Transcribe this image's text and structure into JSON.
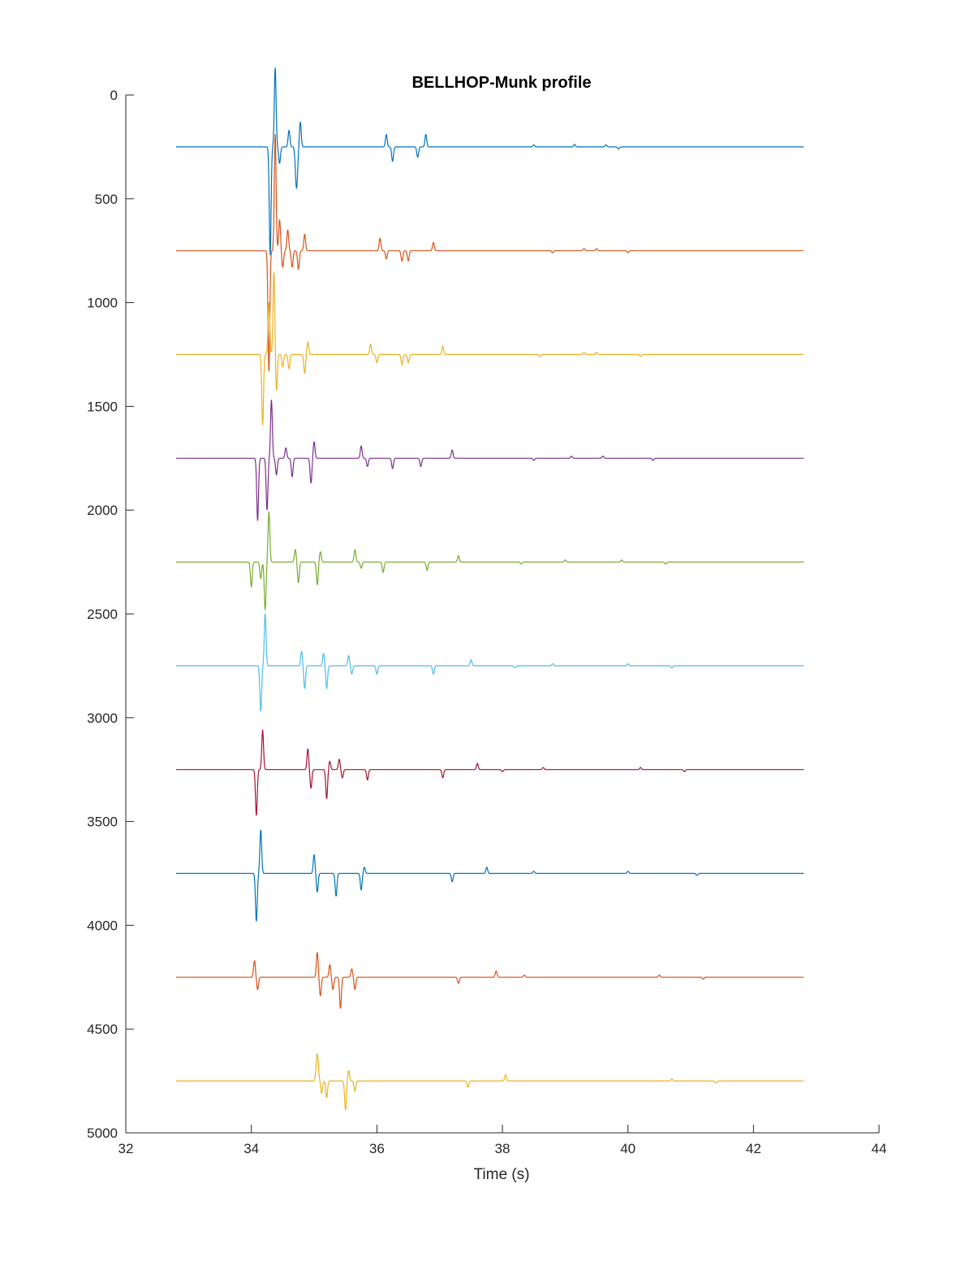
{
  "chart_data": {
    "type": "line",
    "title": "BELLHOP-Munk profile",
    "xlabel": "Time (s)",
    "ylabel": "",
    "xlim": [
      32,
      44
    ],
    "ylim": [
      0,
      5000
    ],
    "y_reversed": true,
    "grid": false,
    "legend": "none",
    "x_ticks": [
      32,
      34,
      36,
      38,
      40,
      42,
      44
    ],
    "y_ticks": [
      0,
      500,
      1000,
      1500,
      2000,
      2500,
      3000,
      3500,
      4000,
      4500,
      5000
    ],
    "x_range": [
      32.8,
      42.8
    ],
    "series": [
      {
        "baseline": 250,
        "color": "#0072BD",
        "events": [
          [
            34.3,
            -520,
            0.02
          ],
          [
            34.38,
            380,
            0.02
          ],
          [
            34.45,
            -80,
            0.02
          ],
          [
            34.6,
            80,
            0.02
          ],
          [
            34.72,
            -200,
            0.025
          ],
          [
            34.78,
            120,
            0.02
          ],
          [
            36.15,
            60,
            0.02
          ],
          [
            36.25,
            -70,
            0.02
          ],
          [
            36.65,
            -50,
            0.02
          ],
          [
            36.78,
            60,
            0.02
          ],
          [
            38.5,
            10,
            0.02
          ],
          [
            39.15,
            12,
            0.02
          ],
          [
            39.65,
            10,
            0.02
          ],
          [
            39.85,
            -10,
            0.02
          ]
        ]
      },
      {
        "baseline": 750,
        "color": "#D95319",
        "events": [
          [
            34.28,
            -580,
            0.02
          ],
          [
            34.38,
            560,
            0.02
          ],
          [
            34.45,
            150,
            0.02
          ],
          [
            34.5,
            -80,
            0.02
          ],
          [
            34.58,
            100,
            0.02
          ],
          [
            34.65,
            -80,
            0.02
          ],
          [
            34.75,
            -90,
            0.02
          ],
          [
            34.85,
            80,
            0.02
          ],
          [
            36.05,
            60,
            0.02
          ],
          [
            36.15,
            -40,
            0.02
          ],
          [
            36.4,
            -50,
            0.02
          ],
          [
            36.5,
            -50,
            0.02
          ],
          [
            36.9,
            40,
            0.02
          ],
          [
            38.8,
            -10,
            0.02
          ],
          [
            39.3,
            10,
            0.02
          ],
          [
            39.5,
            10,
            0.02
          ],
          [
            40.0,
            -10,
            0.02
          ]
        ]
      },
      {
        "baseline": 1250,
        "color": "#EDB120",
        "events": [
          [
            34.18,
            -340,
            0.02
          ],
          [
            34.28,
            250,
            0.02
          ],
          [
            34.36,
            400,
            0.02
          ],
          [
            34.4,
            -180,
            0.02
          ],
          [
            34.5,
            -60,
            0.02
          ],
          [
            34.6,
            -70,
            0.02
          ],
          [
            34.85,
            -90,
            0.02
          ],
          [
            34.9,
            60,
            0.02
          ],
          [
            35.9,
            50,
            0.02
          ],
          [
            36.0,
            -40,
            0.02
          ],
          [
            36.4,
            -50,
            0.02
          ],
          [
            36.5,
            -40,
            0.02
          ],
          [
            37.05,
            40,
            0.02
          ],
          [
            38.6,
            -10,
            0.02
          ],
          [
            39.3,
            10,
            0.02
          ],
          [
            39.5,
            10,
            0.02
          ],
          [
            40.2,
            -10,
            0.02
          ]
        ]
      },
      {
        "baseline": 1750,
        "color": "#7E2F8E",
        "events": [
          [
            34.1,
            -300,
            0.02
          ],
          [
            34.25,
            -250,
            0.02
          ],
          [
            34.32,
            280,
            0.02
          ],
          [
            34.4,
            -80,
            0.02
          ],
          [
            34.55,
            50,
            0.02
          ],
          [
            34.65,
            -90,
            0.02
          ],
          [
            34.95,
            -120,
            0.02
          ],
          [
            35.0,
            80,
            0.02
          ],
          [
            35.75,
            60,
            0.02
          ],
          [
            35.85,
            -40,
            0.02
          ],
          [
            36.25,
            -50,
            0.02
          ],
          [
            36.7,
            -40,
            0.02
          ],
          [
            37.2,
            40,
            0.02
          ],
          [
            38.5,
            -10,
            0.02
          ],
          [
            39.1,
            10,
            0.02
          ],
          [
            39.6,
            10,
            0.02
          ],
          [
            40.4,
            -10,
            0.02
          ]
        ]
      },
      {
        "baseline": 2250,
        "color": "#77AC30",
        "events": [
          [
            34.0,
            -120,
            0.02
          ],
          [
            34.15,
            -80,
            0.02
          ],
          [
            34.22,
            -230,
            0.02
          ],
          [
            34.28,
            240,
            0.02
          ],
          [
            34.7,
            60,
            0.02
          ],
          [
            34.75,
            -100,
            0.02
          ],
          [
            35.05,
            -110,
            0.02
          ],
          [
            35.1,
            50,
            0.02
          ],
          [
            35.65,
            60,
            0.02
          ],
          [
            35.75,
            -30,
            0.02
          ],
          [
            36.1,
            -50,
            0.02
          ],
          [
            36.8,
            -40,
            0.02
          ],
          [
            37.3,
            30,
            0.02
          ],
          [
            38.3,
            -10,
            0.02
          ],
          [
            39.0,
            10,
            0.02
          ],
          [
            39.9,
            10,
            0.02
          ],
          [
            40.6,
            -10,
            0.02
          ]
        ]
      },
      {
        "baseline": 2750,
        "color": "#4DBEEE",
        "events": [
          [
            34.15,
            -220,
            0.02
          ],
          [
            34.22,
            250,
            0.02
          ],
          [
            34.8,
            70,
            0.02
          ],
          [
            34.85,
            -110,
            0.02
          ],
          [
            35.15,
            60,
            0.02
          ],
          [
            35.2,
            -110,
            0.02
          ],
          [
            35.55,
            50,
            0.02
          ],
          [
            35.6,
            -40,
            0.02
          ],
          [
            36.0,
            -40,
            0.02
          ],
          [
            36.9,
            -40,
            0.02
          ],
          [
            37.5,
            30,
            0.02
          ],
          [
            38.2,
            -10,
            0.02
          ],
          [
            38.8,
            10,
            0.02
          ],
          [
            40.0,
            10,
            0.02
          ],
          [
            40.7,
            -10,
            0.02
          ]
        ]
      },
      {
        "baseline": 3250,
        "color": "#A2142F",
        "events": [
          [
            34.08,
            -220,
            0.02
          ],
          [
            34.18,
            190,
            0.02
          ],
          [
            34.9,
            100,
            0.02
          ],
          [
            34.95,
            -90,
            0.02
          ],
          [
            35.2,
            -140,
            0.02
          ],
          [
            35.25,
            40,
            0.02
          ],
          [
            35.4,
            50,
            0.02
          ],
          [
            35.45,
            -40,
            0.02
          ],
          [
            35.85,
            -50,
            0.02
          ],
          [
            37.05,
            -40,
            0.02
          ],
          [
            37.6,
            30,
            0.02
          ],
          [
            38.0,
            -10,
            0.02
          ],
          [
            38.65,
            10,
            0.02
          ],
          [
            40.2,
            10,
            0.02
          ],
          [
            40.9,
            -10,
            0.02
          ]
        ]
      },
      {
        "baseline": 3750,
        "color": "#0072BD",
        "events": [
          [
            34.08,
            -230,
            0.02
          ],
          [
            34.15,
            210,
            0.02
          ],
          [
            35.0,
            90,
            0.02
          ],
          [
            35.05,
            -90,
            0.02
          ],
          [
            35.35,
            -110,
            0.02
          ],
          [
            35.75,
            -80,
            0.02
          ],
          [
            35.8,
            30,
            0.02
          ],
          [
            37.2,
            -40,
            0.02
          ],
          [
            37.75,
            30,
            0.02
          ],
          [
            38.5,
            10,
            0.02
          ],
          [
            40.0,
            10,
            0.02
          ],
          [
            41.1,
            -10,
            0.02
          ]
        ]
      },
      {
        "baseline": 4250,
        "color": "#D95319",
        "events": [
          [
            34.05,
            80,
            0.02
          ],
          [
            34.1,
            -60,
            0.02
          ],
          [
            35.05,
            120,
            0.02
          ],
          [
            35.1,
            -90,
            0.02
          ],
          [
            35.25,
            60,
            0.02
          ],
          [
            35.3,
            -60,
            0.02
          ],
          [
            35.42,
            -150,
            0.02
          ],
          [
            35.6,
            40,
            0.02
          ],
          [
            35.65,
            -60,
            0.02
          ],
          [
            37.3,
            -30,
            0.02
          ],
          [
            37.9,
            30,
            0.02
          ],
          [
            38.35,
            10,
            0.02
          ],
          [
            40.5,
            10,
            0.02
          ],
          [
            41.2,
            -10,
            0.02
          ]
        ]
      },
      {
        "baseline": 4750,
        "color": "#EDB120",
        "events": [
          [
            35.05,
            130,
            0.025
          ],
          [
            35.12,
            -60,
            0.02
          ],
          [
            35.2,
            -80,
            0.02
          ],
          [
            35.5,
            -140,
            0.02
          ],
          [
            35.55,
            50,
            0.02
          ],
          [
            35.65,
            -50,
            0.02
          ],
          [
            37.45,
            -30,
            0.02
          ],
          [
            38.05,
            30,
            0.02
          ],
          [
            40.7,
            10,
            0.02
          ],
          [
            41.4,
            -10,
            0.02
          ]
        ]
      }
    ]
  }
}
